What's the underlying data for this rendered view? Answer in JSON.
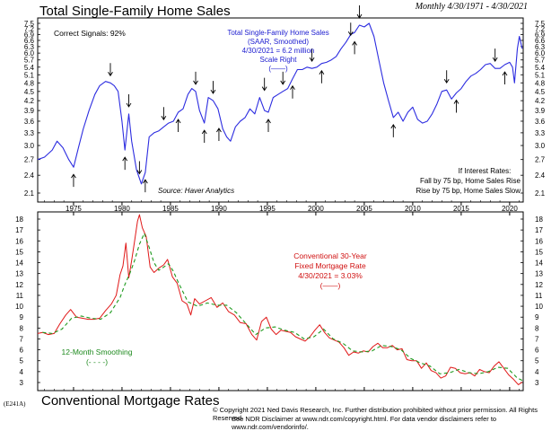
{
  "titles": {
    "top": "Total Single-Family Home Sales",
    "dates": "Monthly 4/30/1971 - 4/30/2021",
    "bottom": "Conventional Mortgage Rates",
    "code": "(E241A)"
  },
  "footer": {
    "line1": "© Copyright 2021 Ned Davis Research, Inc.  Further distribution prohibited without prior permission.  All Rights Reserved.",
    "line2": "See NDR Disclaimer at www.ndr.com/copyright.html.  For data vendor disclaimers refer to www.ndr.com/vendorinfo/."
  },
  "colors": {
    "sales": "#2c2ce0",
    "mortgage": "#e01818",
    "smoothing": "#1e9a1e",
    "annotation_blue": "#2020d0",
    "annotation_red": "#d01010",
    "annotation_green": "#1e8a1e"
  },
  "chart_data": [
    {
      "type": "line",
      "title": "Total Single-Family Home Sales",
      "scale": "log",
      "ylim": [
        2.1,
        7.5
      ],
      "yticks": [
        "2.1",
        "2.4",
        "2.7",
        "3.0",
        "3.3",
        "3.6",
        "3.9",
        "4.2",
        "4.5",
        "4.8",
        "5.1",
        "5.4",
        "5.7",
        "6.0",
        "6.3",
        "6.6",
        "6.9",
        "7.2",
        "7.5"
      ],
      "xticks": [
        "1975",
        "1980",
        "1985",
        "1990",
        "1995",
        "2000",
        "2005",
        "2010",
        "2015",
        "2020"
      ],
      "xlim": [
        1971.3,
        2021.4
      ],
      "series": [
        {
          "name": "Total Single-Family Home Sales (SAAR, Smoothed)",
          "x": [
            1971.3,
            1972,
            1972.8,
            1973.3,
            1973.9,
            1974.5,
            1975.0,
            1975.5,
            1976,
            1976.6,
            1977.2,
            1977.7,
            1978.3,
            1978.8,
            1979.2,
            1979.6,
            1980.0,
            1980.3,
            1980.7,
            1981.0,
            1981.5,
            1982.0,
            1982.4,
            1982.8,
            1983.3,
            1983.8,
            1984.3,
            1984.8,
            1985.3,
            1985.8,
            1986.3,
            1986.8,
            1987.2,
            1987.6,
            1988.0,
            1988.5,
            1988.9,
            1989.4,
            1989.9,
            1990.4,
            1990.8,
            1991.2,
            1991.7,
            1992.2,
            1992.7,
            1993.2,
            1993.7,
            1994.2,
            1994.7,
            1995.1,
            1995.6,
            1996.1,
            1996.6,
            1997.1,
            1997.6,
            1998.1,
            1998.6,
            1999.1,
            1999.6,
            2000.1,
            2000.6,
            2001.1,
            2001.6,
            2002.1,
            2002.6,
            2003.1,
            2003.6,
            2004.0,
            2004.5,
            2005.0,
            2005.5,
            2006.0,
            2006.5,
            2007.0,
            2007.5,
            2008.0,
            2008.5,
            2009.0,
            2009.5,
            2010.0,
            2010.5,
            2011.0,
            2011.5,
            2012.0,
            2012.5,
            2013.0,
            2013.5,
            2014.0,
            2014.5,
            2015.0,
            2015.5,
            2016.0,
            2016.5,
            2017.0,
            2017.5,
            2018.0,
            2018.5,
            2019.0,
            2019.5,
            2020.0,
            2020.3,
            2020.5,
            2020.8,
            2021.0,
            2021.3
          ],
          "values": [
            2.7,
            2.75,
            2.9,
            3.1,
            2.95,
            2.7,
            2.55,
            2.95,
            3.4,
            3.9,
            4.4,
            4.7,
            4.85,
            4.8,
            4.7,
            4.5,
            3.6,
            2.9,
            3.8,
            3.1,
            2.5,
            2.25,
            2.45,
            3.2,
            3.3,
            3.35,
            3.45,
            3.55,
            3.6,
            3.85,
            3.95,
            4.4,
            4.6,
            4.5,
            3.9,
            3.55,
            4.3,
            4.2,
            3.95,
            3.4,
            3.2,
            3.1,
            3.45,
            3.6,
            3.7,
            3.95,
            3.8,
            4.3,
            3.9,
            3.85,
            4.3,
            4.4,
            4.5,
            4.6,
            4.95,
            5.3,
            5.3,
            5.4,
            5.35,
            5.4,
            5.55,
            5.6,
            5.7,
            5.85,
            6.2,
            6.5,
            6.9,
            7.0,
            7.4,
            7.3,
            7.5,
            6.8,
            5.7,
            4.8,
            4.2,
            3.7,
            3.85,
            3.6,
            3.85,
            4.0,
            3.65,
            3.55,
            3.6,
            3.8,
            4.1,
            4.5,
            4.55,
            4.25,
            4.45,
            4.6,
            4.85,
            5.05,
            5.15,
            5.3,
            5.5,
            5.55,
            5.35,
            5.35,
            5.5,
            5.6,
            5.4,
            4.8,
            6.2,
            6.8,
            6.2
          ]
        }
      ],
      "annotations": {
        "signals": "Correct Signals: 92%",
        "series_label": [
          "Total Single-Family Home Sales",
          "(SAAR, Smoothed)",
          "4/30/2021 = 6.2 million",
          "Scale Right",
          "(——)"
        ],
        "rates_note": [
          "If Interest Rates:",
          "Fall by 75 bp, Home Sales Rise",
          "Rise by 75 bp, Home Sales Slow"
        ],
        "source": "Source: Haver Analytics"
      }
    },
    {
      "type": "line",
      "title": "Conventional Mortgage Rates",
      "ylim": [
        3,
        18
      ],
      "yticks": [
        "3",
        "4",
        "5",
        "6",
        "7",
        "8",
        "9",
        "10",
        "11",
        "12",
        "13",
        "14",
        "15",
        "16",
        "17",
        "18"
      ],
      "xlim": [
        1971.3,
        2021.4
      ],
      "series": [
        {
          "name": "Conventional 30-Year Fixed Mortgage Rate",
          "x": [
            1971.3,
            1971.8,
            1972.4,
            1973.0,
            1973.6,
            1974.2,
            1974.7,
            1975.3,
            1975.9,
            1976.5,
            1977.1,
            1977.7,
            1978.3,
            1978.9,
            1979.4,
            1979.8,
            1980.1,
            1980.4,
            1980.7,
            1981.0,
            1981.3,
            1981.6,
            1981.8,
            1982.1,
            1982.5,
            1982.9,
            1983.3,
            1983.8,
            1984.3,
            1984.7,
            1985.2,
            1985.7,
            1986.2,
            1986.7,
            1987.1,
            1987.5,
            1988.0,
            1988.6,
            1989.2,
            1989.8,
            1990.4,
            1991.0,
            1991.6,
            1992.2,
            1992.8,
            1993.4,
            1993.9,
            1994.4,
            1994.9,
            1995.4,
            1995.9,
            1996.4,
            1996.9,
            1997.4,
            1997.9,
            1998.4,
            1998.9,
            1999.4,
            1999.9,
            2000.4,
            2000.9,
            2001.4,
            2001.9,
            2002.4,
            2002.9,
            2003.4,
            2003.9,
            2004.4,
            2004.9,
            2005.4,
            2005.9,
            2006.4,
            2006.9,
            2007.4,
            2007.9,
            2008.4,
            2008.9,
            2009.4,
            2009.9,
            2010.4,
            2010.9,
            2011.4,
            2011.9,
            2012.4,
            2012.9,
            2013.4,
            2013.9,
            2014.4,
            2014.9,
            2015.4,
            2015.9,
            2016.4,
            2016.9,
            2017.4,
            2017.9,
            2018.4,
            2018.9,
            2019.4,
            2019.9,
            2020.4,
            2020.9,
            2021.3
          ],
          "values": [
            7.5,
            7.6,
            7.4,
            7.5,
            8.4,
            9.2,
            9.7,
            9.0,
            8.9,
            8.8,
            8.8,
            8.9,
            9.6,
            10.2,
            11.0,
            12.9,
            13.7,
            15.8,
            12.6,
            14.2,
            16.0,
            17.8,
            18.4,
            17.2,
            16.4,
            13.6,
            13.1,
            13.5,
            13.8,
            14.3,
            12.7,
            12.1,
            10.5,
            10.2,
            9.2,
            10.7,
            10.2,
            10.5,
            10.8,
            9.9,
            10.3,
            9.5,
            9.2,
            8.5,
            8.4,
            7.4,
            6.9,
            8.6,
            9.0,
            7.9,
            7.4,
            7.8,
            7.7,
            7.6,
            7.2,
            7.0,
            6.8,
            7.2,
            7.8,
            8.3,
            7.6,
            7.1,
            6.9,
            6.7,
            6.2,
            5.5,
            5.8,
            5.7,
            5.9,
            5.8,
            6.3,
            6.6,
            6.2,
            6.2,
            6.4,
            6.0,
            6.1,
            5.1,
            5.0,
            5.0,
            4.3,
            4.8,
            4.1,
            3.9,
            3.4,
            3.6,
            4.4,
            4.3,
            3.9,
            3.8,
            3.9,
            3.6,
            4.2,
            4.0,
            3.9,
            4.5,
            4.9,
            4.3,
            3.7,
            3.3,
            2.8,
            3.03
          ]
        },
        {
          "name": "12-Month Smoothing",
          "x": [
            1971.8,
            1972.8,
            1973.8,
            1974.8,
            1975.8,
            1976.8,
            1977.8,
            1978.8,
            1979.8,
            1980.3,
            1980.8,
            1981.3,
            1981.8,
            1982.3,
            1982.8,
            1983.3,
            1983.8,
            1984.3,
            1984.8,
            1985.3,
            1985.8,
            1986.8,
            1987.8,
            1988.8,
            1989.8,
            1990.8,
            1991.8,
            1992.8,
            1993.8,
            1994.8,
            1995.8,
            1996.8,
            1997.8,
            1998.8,
            1999.8,
            2000.8,
            2001.8,
            2002.8,
            2003.8,
            2004.8,
            2005.8,
            2006.8,
            2007.8,
            2008.8,
            2009.8,
            2010.8,
            2011.8,
            2012.8,
            2013.8,
            2014.8,
            2015.8,
            2016.8,
            2017.8,
            2018.8,
            2019.8,
            2020.8,
            2021.3
          ],
          "values": [
            7.6,
            7.5,
            7.9,
            8.9,
            9.1,
            8.9,
            8.8,
            9.4,
            10.8,
            12.0,
            13.0,
            14.2,
            15.7,
            16.7,
            15.4,
            14.0,
            13.3,
            13.6,
            13.9,
            13.2,
            12.2,
            10.4,
            10.0,
            10.3,
            10.1,
            10.1,
            9.4,
            8.4,
            7.4,
            8.0,
            8.1,
            7.8,
            7.6,
            7.0,
            7.2,
            7.9,
            7.0,
            6.6,
            5.9,
            5.8,
            5.9,
            6.4,
            6.3,
            6.0,
            5.2,
            4.8,
            4.5,
            3.8,
            3.9,
            4.2,
            3.9,
            3.8,
            4.0,
            4.4,
            4.3,
            3.4,
            3.2
          ]
        }
      ],
      "annotations": {
        "series_label": [
          "Conventional 30-Year",
          "Fixed Mortgage Rate",
          "4/30/2021 = 3.03%",
          "(——)"
        ],
        "smoothing_label": [
          "12-Month Smoothing",
          "(- - - -)"
        ]
      }
    }
  ]
}
